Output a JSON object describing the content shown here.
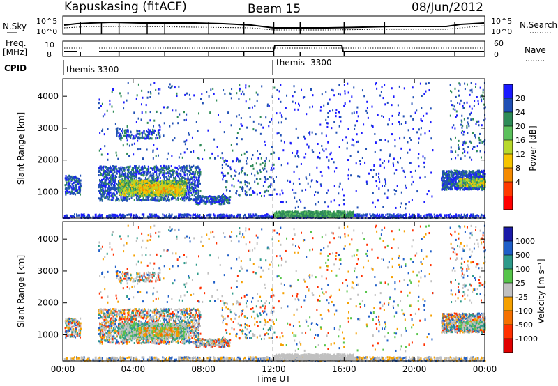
{
  "header": {
    "station": "Kapuskasing (fitACF)",
    "beam": "Beam 15",
    "date": "08/Jun/2012"
  },
  "top_panel_labels": {
    "nsky": "N.Sky",
    "nsky_axis": [
      "10^5",
      "10^0"
    ],
    "nsearch": "N.Search",
    "freq": "Freq.",
    "freq_unit": "[MHz]",
    "freq_axis": [
      "10",
      "8"
    ],
    "nave": "Nave",
    "nave_axis": [
      "60",
      "0"
    ],
    "cpid": "CPID",
    "cpid_segments": [
      "themis 3300",
      "themis -3300"
    ]
  },
  "chart_data": [
    {
      "type": "heatmap",
      "ylabel": "Slant Range [km]",
      "xlabel": "",
      "ylim": [
        180,
        4550
      ],
      "yticks": [
        "4000",
        "3000",
        "2000",
        "1000"
      ],
      "colorbar_label": "Power [dB]",
      "colorbar_ticks": [
        "28",
        "24",
        "20",
        "16",
        "12",
        "8",
        "4"
      ],
      "colorbar_colors": [
        "#1a1aff",
        "#1f4fb4",
        "#2e8b57",
        "#5cc05c",
        "#b8d82c",
        "#f6c400",
        "#f58a00",
        "#ff3a00",
        "#ff0000"
      ]
    },
    {
      "type": "heatmap",
      "ylabel": "Slant Range [km]",
      "xlabel": "Time UT",
      "ylim": [
        180,
        4550
      ],
      "yticks": [
        "4000",
        "3000",
        "2000",
        "1000"
      ],
      "xticks": [
        "00:00",
        "04:00",
        "08:00",
        "12:00",
        "16:00",
        "20:00",
        "00:00"
      ],
      "colorbar_label": "Velocity [m s⁻¹]",
      "colorbar_ticks": [
        "1000",
        "500",
        "100",
        "25",
        "-25",
        "-100",
        "-500",
        "-1000"
      ],
      "colorbar_colors": [
        "#1a1aa8",
        "#1f5fc8",
        "#2e9a8a",
        "#56c44a",
        "#c0c0c0",
        "#f5a000",
        "#f57000",
        "#ff3000",
        "#e00000"
      ]
    }
  ]
}
